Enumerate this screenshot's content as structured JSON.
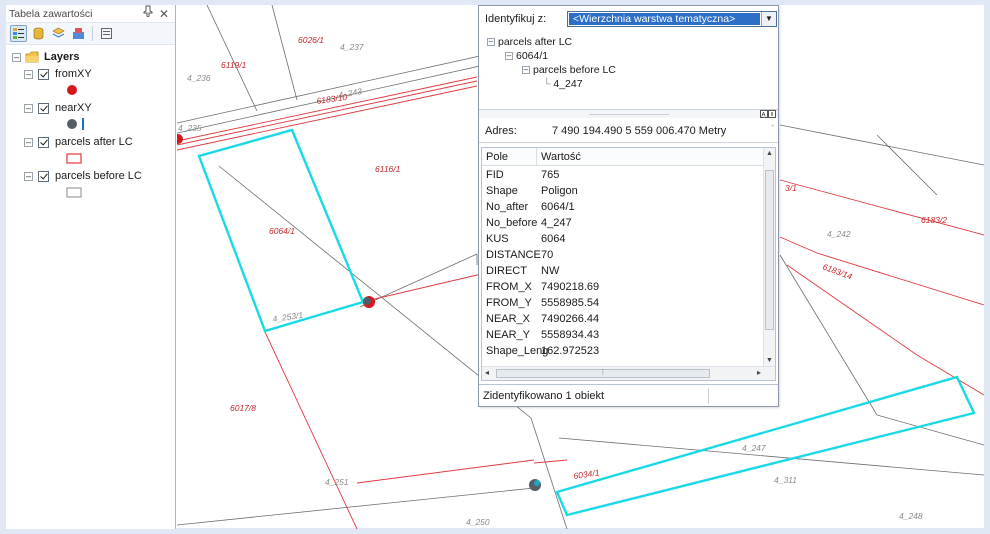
{
  "toc": {
    "title": "Tabela zawartości",
    "pin_icon": "pin-icon",
    "close_glyph": "✕",
    "root_label": "Layers",
    "layers": [
      {
        "name": "fromXY",
        "symbol": "red-point",
        "symbol_color": "#d6171b"
      },
      {
        "name": "nearXY",
        "symbol": "gray-point-with-blue-line",
        "symbol_color": "#555e66",
        "line_color": "#1a6fd6"
      },
      {
        "name": "parcels after LC",
        "symbol": "red-outline-rectangle",
        "symbol_color": "#e8333a"
      },
      {
        "name": "parcels before LC",
        "symbol": "gray-outline-rectangle",
        "symbol_color": "#888888"
      }
    ]
  },
  "map": {
    "labels_red": [
      "6026/1",
      "6119/1",
      "6183/10",
      "6116/1",
      "6064/1",
      "6183/2",
      "6183/14",
      "6017/8",
      "6034/1",
      "3/1"
    ],
    "labels_gray": [
      "4_237",
      "4_236",
      "4_243",
      "4_235",
      "4_253/1",
      "4_242",
      "4_247",
      "4_311",
      "4_251",
      "4_250",
      "4_248"
    ],
    "highlight_color": "#19d9e6",
    "parcel_line_color": "#e03a3e"
  },
  "identify": {
    "caption": "Identyfikuj z:",
    "selected_layer": "<Wierzchnia warstwa tematyczna>",
    "tree": {
      "root": "parcels after LC",
      "feature": "6064/1",
      "related": "parcels before LC",
      "related_feature": "4_247"
    },
    "address_label": "Adres:",
    "address_value": "7 490 194.490  5 559 006.470 Metry",
    "columns": [
      "Pole",
      "Wartość"
    ],
    "rows": [
      {
        "field": "FID",
        "value": "765"
      },
      {
        "field": "Shape",
        "value": "Poligon"
      },
      {
        "field": "No_after",
        "value": "6064/1"
      },
      {
        "field": "No_before",
        "value": "4_247"
      },
      {
        "field": "KUS",
        "value": "6064"
      },
      {
        "field": "DISTANCE",
        "value": "70"
      },
      {
        "field": "DIRECT",
        "value": "NW"
      },
      {
        "field": "FROM_X",
        "value": "7490218.69"
      },
      {
        "field": "FROM_Y",
        "value": "5558985.54"
      },
      {
        "field": "NEAR_X",
        "value": "7490266.44"
      },
      {
        "field": "NEAR_Y",
        "value": "5558934.43"
      },
      {
        "field": "Shape_Leng",
        "value": "162.972523"
      }
    ],
    "status": "Zidentyfikowano 1 obiekt"
  }
}
